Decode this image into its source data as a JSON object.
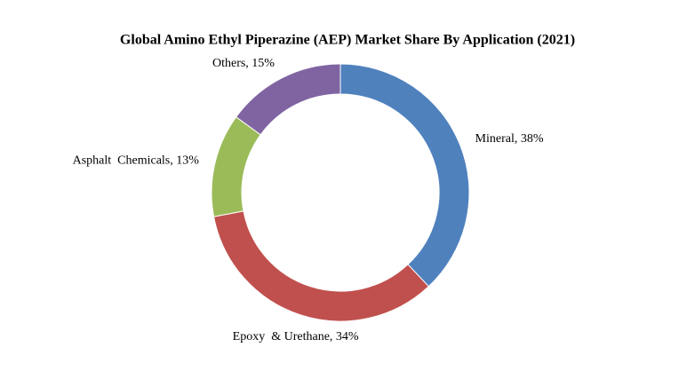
{
  "chart_data": {
    "type": "donut",
    "title": "Global Amino Ethyl Piperazine (AEP) Market Share By Application (2021)",
    "values": [
      38,
      34,
      13,
      15
    ],
    "value_labels": [
      "Mineral, 38%",
      "Epoxy  & Urethane, 34%",
      "Asphalt  Chemicals, 13%",
      "Others, 15%"
    ],
    "colors": [
      "#4f81bd",
      "#c0504d",
      "#9bbb59",
      "#8064a2"
    ]
  }
}
